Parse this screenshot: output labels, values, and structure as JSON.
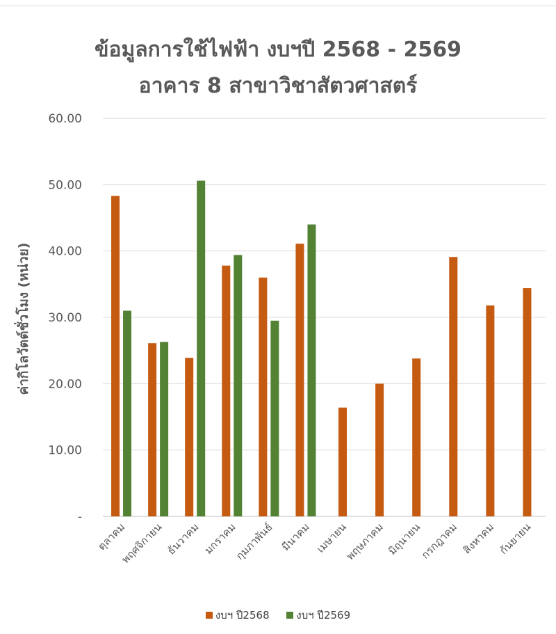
{
  "chart_data": {
    "type": "bar",
    "title_lines": [
      "ข้อมูลการใช้ไฟฟ้า งบฯปี 2568 - 2569",
      "อาคาร 8 สาขาวิชาสัตวศาสตร์"
    ],
    "xlabel": "",
    "ylabel": "ค่ากิโลวัตต์ชั่วโมง (หน่วย)",
    "ylim": [
      0,
      60
    ],
    "yticks": [
      "-",
      "10.00",
      "20.00",
      "30.00",
      "40.00",
      "50.00",
      "60.00"
    ],
    "grid": true,
    "legend_position": "bottom",
    "categories": [
      "ตุลาคม",
      "พฤศจิกายน",
      "ธันวาคม",
      "มกราคม",
      "กุมภาพันธ์",
      "มีนาคม",
      "เมษายน",
      "พฤษภาคม",
      "มิถุนายน",
      "กรกฎาคม",
      "สิงหาคม",
      "กันยายน"
    ],
    "series": [
      {
        "name": "งบฯ ปี2568",
        "color": "#C55A11",
        "values": [
          48.3,
          26.1,
          23.9,
          37.8,
          36.0,
          41.1,
          16.4,
          20.0,
          23.8,
          39.1,
          31.8,
          34.4
        ]
      },
      {
        "name": "งบฯ ปี2569",
        "color": "#548235",
        "values": [
          31.0,
          26.3,
          50.6,
          39.4,
          29.5,
          44.0,
          null,
          null,
          null,
          null,
          null,
          null
        ]
      }
    ]
  }
}
